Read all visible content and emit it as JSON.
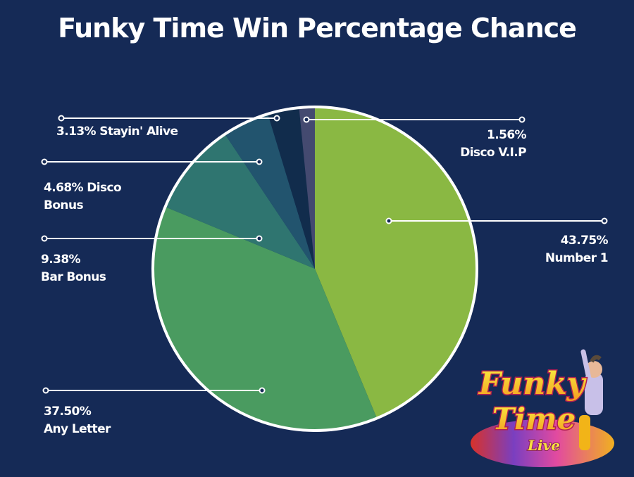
{
  "header": {
    "title": "Funky Time Win Percentage Chance"
  },
  "chart_data": {
    "type": "pie",
    "title": "Funky Time Win Percentage Chance",
    "start_angle_deg": 0,
    "direction": "clockwise",
    "slices": [
      {
        "label": "Number 1",
        "value": 43.75,
        "display": "43.75%",
        "color": "#8ab843"
      },
      {
        "label": "Any Letter",
        "value": 37.5,
        "display": "37.50%",
        "color": "#4a9b60"
      },
      {
        "label": "Bar Bonus",
        "value": 9.38,
        "display": "9.38%",
        "color": "#2f7570"
      },
      {
        "label": "Disco Bonus",
        "value": 4.68,
        "display": "4.68%",
        "color": "#22546e"
      },
      {
        "label": "Stayin' Alive",
        "value": 3.13,
        "display": "3.13%",
        "color": "#112c4c"
      },
      {
        "label": "Disco V.I.P",
        "value": 1.56,
        "display": "1.56%",
        "color": "#444a70"
      }
    ],
    "legend": "callout-labels"
  },
  "labels": {
    "stayin_alive": {
      "line1": "3.13% Stayin' Alive"
    },
    "disco_vip": {
      "line1": "1.56%",
      "line2": "Disco V.I.P"
    },
    "disco_bonus": {
      "line1": "4.68% Disco",
      "line2": "Bonus"
    },
    "bar_bonus": {
      "line1": "9.38%",
      "line2": "Bar Bonus"
    },
    "number_1": {
      "line1": "43.75%",
      "line2": "Number 1"
    },
    "any_letter": {
      "line1": "37.50%",
      "line2": "Any Letter"
    }
  },
  "colors": {
    "background": "#152a56",
    "text": "#ffffff",
    "border": "#ffffff"
  },
  "logo": {
    "line1": "Funky",
    "line2": "Time",
    "line3": "Live"
  }
}
